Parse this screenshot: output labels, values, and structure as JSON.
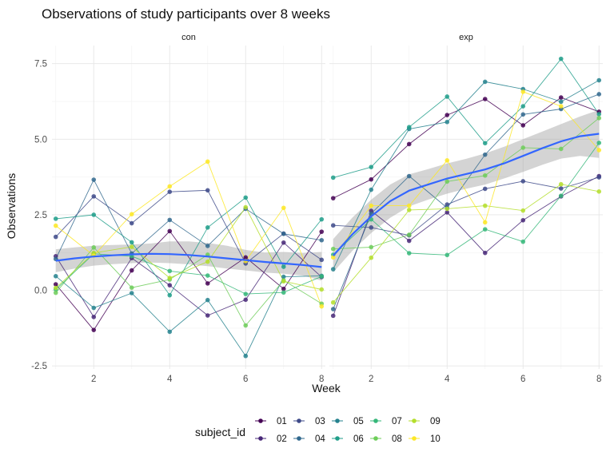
{
  "chart_data": {
    "type": "line",
    "title": "Observations of study participants over 8 weeks",
    "xlabel": "Week",
    "ylabel": "Observations",
    "facets": [
      "con",
      "exp"
    ],
    "xlim": [
      0.9,
      8.1
    ],
    "ylim": [
      -2.6,
      8.1
    ],
    "x_ticks": [
      2,
      4,
      6,
      8
    ],
    "y_ticks": [
      -2.5,
      0.0,
      2.5,
      5.0,
      7.5
    ],
    "y_tick_labels": [
      "-2.5",
      "0.0",
      "2.5",
      "5.0",
      "7.5"
    ],
    "grid": true,
    "legend": {
      "title": "subject_id",
      "position": "bottom",
      "entries": [
        "01",
        "02",
        "03",
        "04",
        "05",
        "06",
        "07",
        "08",
        "09",
        "10"
      ]
    },
    "colors": {
      "01": "#440154",
      "02": "#482878",
      "03": "#3E4A89",
      "04": "#31688E",
      "05": "#26828E",
      "06": "#1F9E89",
      "07": "#35B779",
      "08": "#6DCD59",
      "09": "#B4DE2C",
      "10": "#FDE725"
    },
    "x": [
      1,
      2,
      3,
      4,
      5,
      6,
      7,
      8
    ],
    "series": {
      "con": [
        {
          "name": "01",
          "values": [
            0.2,
            -1.31,
            0.66,
            1.96,
            0.23,
            1.09,
            0.05,
            1.94
          ]
        },
        {
          "name": "02",
          "values": [
            1.13,
            -0.88,
            1.07,
            0.17,
            -0.83,
            -0.31,
            1.58,
            0.44
          ]
        },
        {
          "name": "03",
          "values": [
            1.77,
            3.11,
            2.22,
            3.26,
            3.31,
            0.89,
            1.88,
            1.01
          ]
        },
        {
          "name": "04",
          "values": [
            1.04,
            3.66,
            1.22,
            2.33,
            1.47,
            2.7,
            1.87,
            1.66
          ]
        },
        {
          "name": "05",
          "values": [
            0.47,
            -0.58,
            -0.09,
            -1.37,
            -0.32,
            -2.17,
            0.45,
            0.48
          ]
        },
        {
          "name": "06",
          "values": [
            2.37,
            2.5,
            1.59,
            -0.16,
            2.08,
            3.07,
            0.78,
            2.35
          ]
        },
        {
          "name": "07",
          "values": [
            0.03,
            1.21,
            1.13,
            0.64,
            0.49,
            -0.12,
            -0.07,
            0.46
          ]
        },
        {
          "name": "08",
          "values": [
            -0.08,
            1.42,
            0.09,
            0.36,
            1.18,
            -1.16,
            0.33,
            -0.44
          ]
        },
        {
          "name": "09",
          "values": [
            0.08,
            1.24,
            1.44,
            0.41,
            0.95,
            2.75,
            0.3,
            0.03
          ]
        },
        {
          "name": "10",
          "values": [
            2.14,
            1.15,
            2.52,
            3.44,
            4.26,
            0.97,
            2.73,
            -0.53
          ]
        }
      ],
      "exp": [
        {
          "name": "01",
          "values": [
            3.05,
            3.67,
            4.84,
            5.8,
            6.33,
            5.46,
            6.38,
            5.91
          ]
        },
        {
          "name": "02",
          "values": [
            -0.84,
            2.63,
            1.64,
            2.58,
            1.24,
            2.32,
            3.11,
            3.78
          ]
        },
        {
          "name": "03",
          "values": [
            2.15,
            2.08,
            1.82,
            2.84,
            3.36,
            3.61,
            3.37,
            3.74
          ]
        },
        {
          "name": "04",
          "values": [
            -0.62,
            2.54,
            3.78,
            2.73,
            4.49,
            5.82,
            6.0,
            6.49
          ]
        },
        {
          "name": "05",
          "values": [
            0.7,
            3.33,
            5.34,
            5.57,
            6.9,
            6.66,
            6.24,
            6.95
          ]
        },
        {
          "name": "06",
          "values": [
            3.73,
            4.08,
            5.4,
            6.41,
            4.87,
            6.09,
            7.66,
            5.83
          ]
        },
        {
          "name": "07",
          "values": [
            1.18,
            2.35,
            1.23,
            1.17,
            2.02,
            1.61,
            3.13,
            4.88
          ]
        },
        {
          "name": "08",
          "values": [
            1.37,
            1.43,
            1.84,
            3.6,
            3.8,
            4.72,
            4.68,
            5.7
          ]
        },
        {
          "name": "09",
          "values": [
            -0.4,
            1.08,
            2.66,
            2.7,
            2.8,
            2.64,
            3.51,
            3.27
          ]
        },
        {
          "name": "10",
          "values": [
            1.09,
            2.8,
            2.8,
            4.3,
            2.25,
            6.57,
            6.09,
            4.64
          ]
        }
      ]
    },
    "smooth": {
      "con": {
        "x": [
          1,
          1.5,
          2,
          2.5,
          3,
          3.5,
          4,
          4.5,
          5,
          5.5,
          6,
          6.5,
          7,
          7.5,
          8
        ],
        "y": [
          0.98,
          1.06,
          1.12,
          1.16,
          1.19,
          1.21,
          1.2,
          1.17,
          1.12,
          1.06,
          1.0,
          0.94,
          0.89,
          0.84,
          0.77
        ],
        "lower": [
          0.6,
          0.72,
          0.82,
          0.87,
          0.9,
          0.92,
          0.9,
          0.86,
          0.8,
          0.72,
          0.66,
          0.59,
          0.55,
          0.49,
          0.32
        ],
        "upper": [
          1.36,
          1.42,
          1.48,
          1.5,
          1.52,
          1.55,
          1.62,
          1.62,
          1.57,
          1.48,
          1.34,
          1.25,
          1.27,
          1.24,
          1.27
        ]
      },
      "exp": {
        "x": [
          1,
          1.5,
          2,
          2.5,
          3,
          3.5,
          4,
          4.5,
          5,
          5.5,
          6,
          6.5,
          7,
          7.5,
          8
        ],
        "y": [
          1.15,
          1.85,
          2.45,
          2.95,
          3.3,
          3.5,
          3.7,
          3.85,
          4.0,
          4.2,
          4.45,
          4.7,
          4.93,
          5.1,
          5.18
        ],
        "lower": [
          0.6,
          1.3,
          1.9,
          2.4,
          2.78,
          3.0,
          3.2,
          3.36,
          3.5,
          3.7,
          3.92,
          4.15,
          4.36,
          4.45,
          4.38
        ],
        "upper": [
          1.7,
          2.4,
          3.0,
          3.5,
          3.84,
          4.01,
          4.2,
          4.35,
          4.53,
          4.75,
          5.0,
          5.25,
          5.5,
          5.75,
          5.97
        ]
      }
    }
  }
}
